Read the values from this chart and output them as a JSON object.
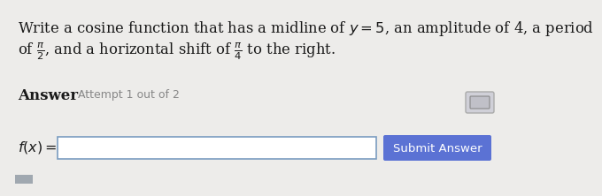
{
  "bg_color": "#edecea",
  "title_line1": "Write a cosine function that has a midline of $y = 5$, an amplitude of 4, a period",
  "title_line2": "of $\\frac{\\pi}{2}$, and a horizontal shift of $\\frac{\\pi}{4}$ to the right.",
  "answer_label": "Answer",
  "attempt_label": "Attempt 1 out of 2",
  "fx_label": "$f(x) =$",
  "submit_text": "Submit Answer",
  "submit_bg": "#5b72d4",
  "input_box_color": "#ffffff",
  "input_border_color": "#7a9cc0",
  "text_color": "#1a1a1a",
  "answer_color": "#1a1a1a",
  "attempt_color": "#888888",
  "submit_text_color": "#ffffff",
  "title_fontsize": 11.8,
  "answer_fontsize": 12,
  "attempt_fontsize": 9.0,
  "fx_fontsize": 11.5,
  "submit_fontsize": 9.5,
  "icon_color": "#d0d0d8",
  "icon_border": "#aaaaaa",
  "tab_color": "#a0a8b0"
}
